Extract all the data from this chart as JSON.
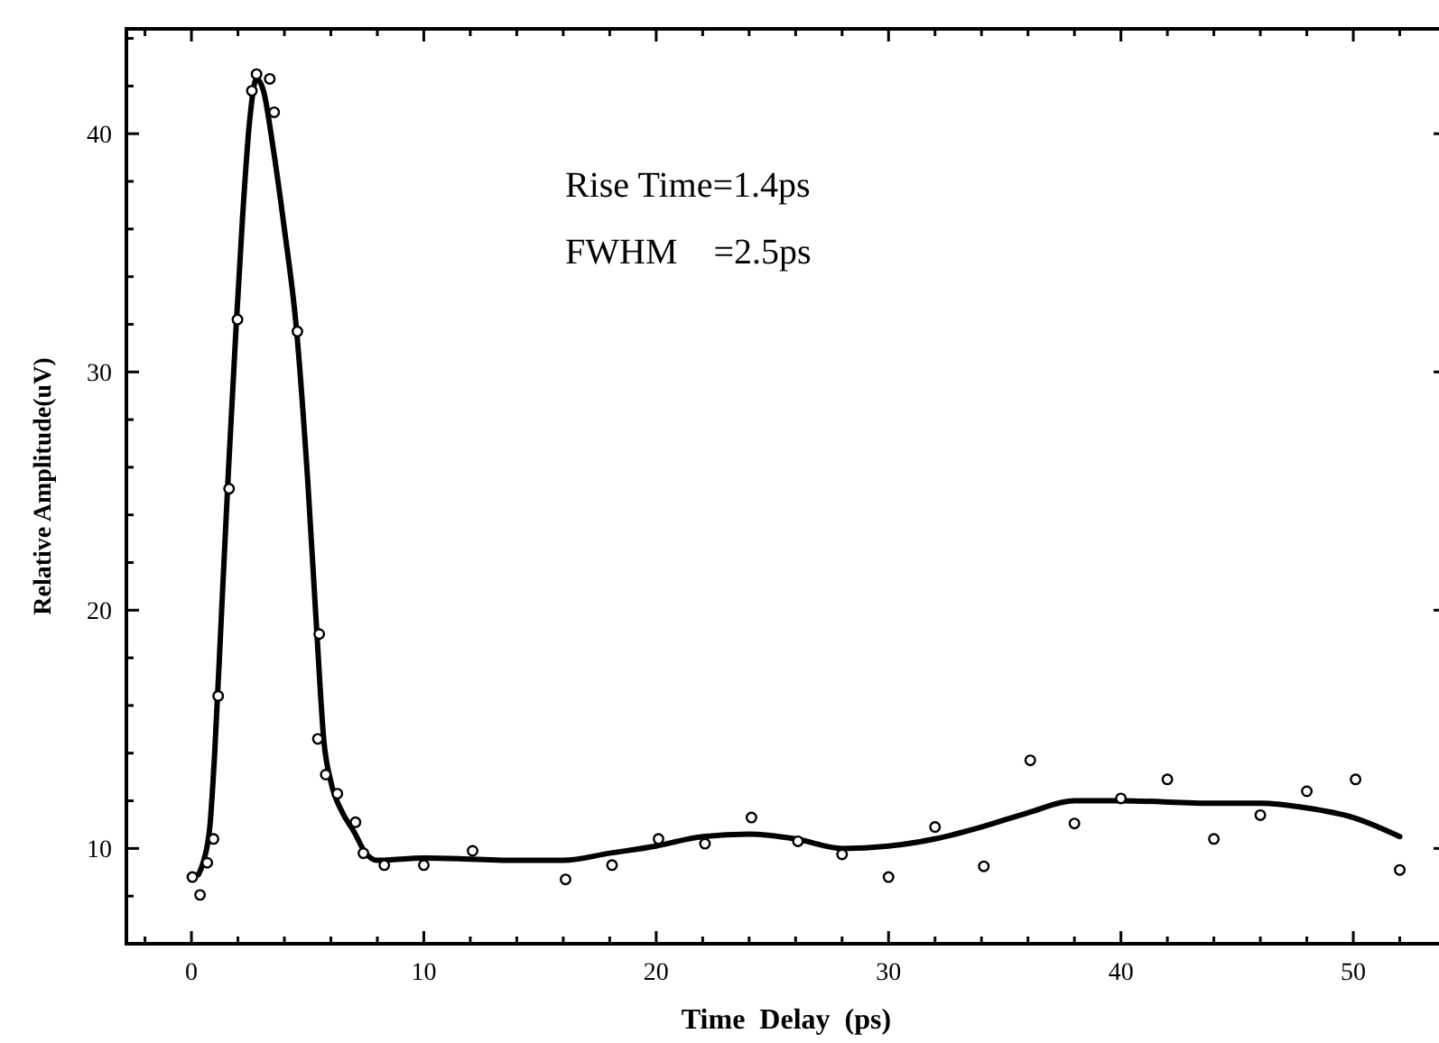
{
  "chart_data": {
    "type": "scatter",
    "xlabel": "Time  Delay  (ps)",
    "ylabel": "Relative Amplitude(uV)",
    "annotations": [
      "Rise Time=1.4ps",
      "FWHM    =2.5ps"
    ],
    "xlim": [
      -2.8,
      54
    ],
    "ylim": [
      6,
      44.4
    ],
    "xticks": [
      {
        "value": -2,
        "label": null
      },
      0,
      {
        "value": 2,
        "label": null
      },
      {
        "value": 4,
        "label": null
      },
      {
        "value": 6,
        "label": null
      },
      {
        "value": 8,
        "label": null
      },
      10,
      {
        "value": 12,
        "label": null
      },
      {
        "value": 14,
        "label": null
      },
      {
        "value": 16,
        "label": null
      },
      {
        "value": 18,
        "label": null
      },
      20,
      {
        "value": 22,
        "label": null
      },
      {
        "value": 24,
        "label": null
      },
      {
        "value": 26,
        "label": null
      },
      {
        "value": 28,
        "label": null
      },
      30,
      {
        "value": 32,
        "label": null
      },
      {
        "value": 34,
        "label": null
      },
      {
        "value": 36,
        "label": null
      },
      {
        "value": 38,
        "label": null
      },
      40,
      {
        "value": 42,
        "label": null
      },
      {
        "value": 44,
        "label": null
      },
      {
        "value": 46,
        "label": null
      },
      {
        "value": 48,
        "label": null
      },
      50,
      {
        "value": 52,
        "label": null
      },
      {
        "value": 54,
        "label": null
      }
    ],
    "yticks": [
      {
        "value": 8,
        "label": null
      },
      10,
      {
        "value": 12,
        "label": null
      },
      {
        "value": 14,
        "label": null
      },
      {
        "value": 16,
        "label": null
      },
      {
        "value": 18,
        "label": null
      },
      20,
      {
        "value": 22,
        "label": null
      },
      {
        "value": 24,
        "label": null
      },
      {
        "value": 26,
        "label": null
      },
      {
        "value": 28,
        "label": null
      },
      30,
      {
        "value": 32,
        "label": null
      },
      {
        "value": 34,
        "label": null
      },
      {
        "value": 36,
        "label": null
      },
      {
        "value": 38,
        "label": null
      },
      40,
      {
        "value": 42,
        "label": null
      },
      {
        "value": 44,
        "label": null
      }
    ],
    "grid": false,
    "series": [
      {
        "color": "#000000",
        "marker": "circle",
        "x": [
          0.04,
          0.37,
          0.68,
          0.95,
          1.15,
          1.62,
          1.98,
          2.6,
          2.8,
          3.37,
          3.56,
          4.56,
          5.44,
          5.5,
          5.78,
          6.28,
          7.06,
          7.4,
          8.3,
          10.0,
          12.1,
          16.1,
          18.1,
          20.1,
          22.1,
          24.1,
          26.1,
          28.0,
          30.0,
          32.0,
          34.1,
          36.1,
          38.0,
          40.0,
          42.0,
          44.0,
          46.0,
          48.0,
          50.1,
          52.0
        ],
        "values": [
          8.8,
          8.05,
          9.4,
          10.4,
          16.4,
          25.1,
          32.2,
          41.8,
          42.5,
          42.3,
          40.9,
          31.7,
          14.6,
          19.0,
          13.1,
          12.3,
          11.1,
          9.8,
          9.3,
          9.3,
          9.9,
          8.7,
          9.3,
          10.4,
          10.2,
          11.3,
          10.3,
          9.75,
          8.8,
          10.9,
          9.25,
          13.7,
          11.05,
          12.1,
          12.9,
          10.4,
          11.4,
          12.4,
          12.9,
          9.1
        ]
      },
      {
        "type": "line",
        "color": "#000000",
        "marker": "none",
        "line_style": "solid",
        "x": [
          0.3,
          0.5,
          0.8,
          1.0,
          1.3,
          1.6,
          1.9,
          2.2,
          2.5,
          2.8,
          3.1,
          3.5,
          4.0,
          4.5,
          5.0,
          5.4,
          5.7,
          6.0,
          6.5,
          7.0,
          7.5,
          8.0,
          10,
          14,
          16,
          18,
          20,
          22,
          24,
          26,
          28,
          30,
          32,
          34,
          36,
          38,
          40,
          44,
          46,
          48,
          50,
          52
        ],
        "values": [
          8.9,
          9.4,
          11,
          14,
          20,
          26,
          31.5,
          36.5,
          40.5,
          42.3,
          41.8,
          39.5,
          36,
          32,
          25.5,
          19,
          14.5,
          12.8,
          11.5,
          10.7,
          9.8,
          9.5,
          9.6,
          9.5,
          9.5,
          9.8,
          10.1,
          10.5,
          10.6,
          10.4,
          10.0,
          10.1,
          10.4,
          10.9,
          11.5,
          12.0,
          12.0,
          11.9,
          11.9,
          11.7,
          11.3,
          10.5
        ]
      }
    ]
  }
}
